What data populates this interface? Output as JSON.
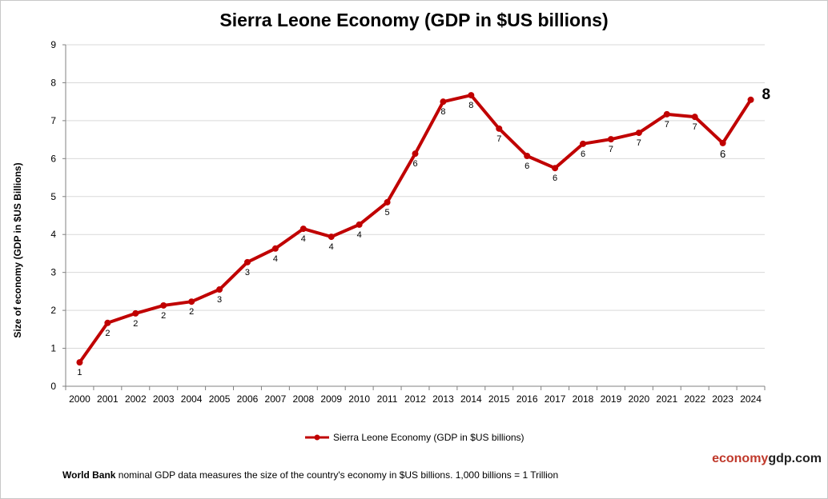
{
  "chart_data": {
    "type": "line",
    "title": "Sierra Leone Economy (GDP in $US billions)",
    "xlabel": "",
    "ylabel": "Size of economy (GDP in $US Billions)",
    "ylim": [
      0,
      9
    ],
    "yticks": [
      "0",
      "1",
      "2",
      "3",
      "4",
      "5",
      "6",
      "7",
      "8",
      "9"
    ],
    "grid": true,
    "legend_position": "bottom",
    "categories": [
      "2000",
      "2001",
      "2002",
      "2003",
      "2004",
      "2005",
      "2006",
      "2007",
      "2008",
      "2009",
      "2010",
      "2011",
      "2012",
      "2013",
      "2014",
      "2015",
      "2016",
      "2017",
      "2018",
      "2019",
      "2020",
      "2021",
      "2022",
      "2023",
      "2024"
    ],
    "series": [
      {
        "name": "Sierra Leone Economy (GDP in $US billions)",
        "color": "#c00000",
        "values": [
          0.63,
          1.67,
          1.92,
          2.13,
          2.23,
          2.55,
          3.27,
          3.63,
          4.15,
          3.94,
          4.26,
          4.85,
          6.13,
          7.5,
          7.67,
          6.79,
          6.07,
          5.75,
          6.39,
          6.51,
          6.68,
          7.17,
          7.1,
          6.41,
          7.55
        ],
        "data_labels": [
          "1",
          "2",
          "2",
          "2",
          "2",
          "3",
          "3",
          "4",
          "4",
          "4",
          "4",
          "5",
          "6",
          "8",
          "8",
          "7",
          "6",
          "6",
          "6",
          "7",
          "7",
          "7",
          "7",
          "6",
          "8"
        ]
      }
    ]
  },
  "brand": {
    "part1": "economy",
    "part2": "gdp.com"
  },
  "note": {
    "bold": "World Bank",
    "text": " nominal GDP data  measures the size of the country's economy in $US billions. 1,000 billions = 1 Trillion"
  }
}
